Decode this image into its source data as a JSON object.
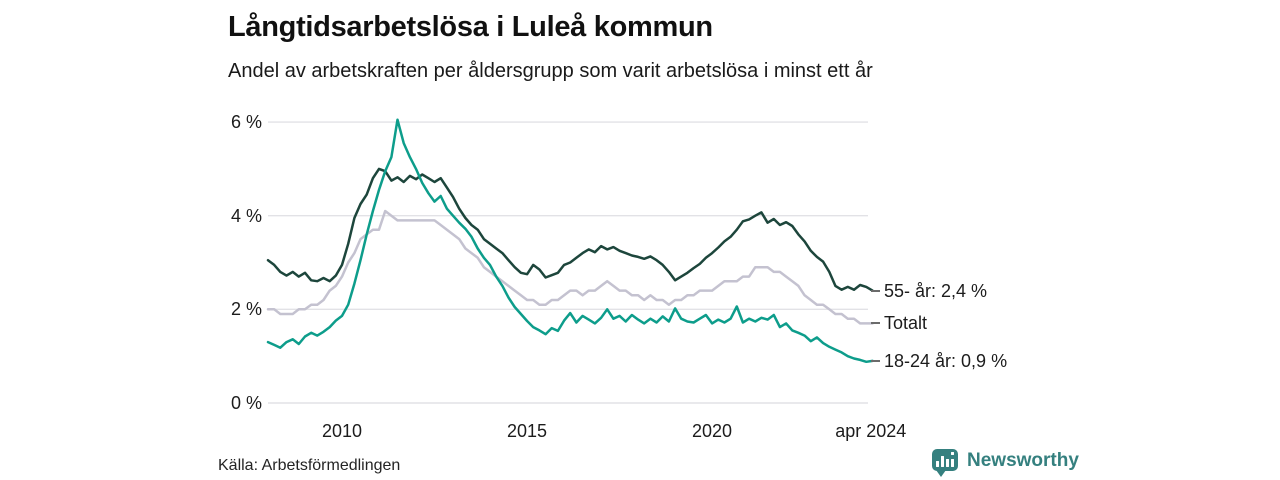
{
  "header": {
    "title": "Långtidsarbetslösa i Luleå kommun",
    "subtitle": "Andel av arbetskraften per åldersgrupp som varit arbetslösa i minst ett år"
  },
  "footer": {
    "source": "Källa: Arbetsförmedlingen",
    "brand_name": "Newsworthy",
    "brand_color": "#35807f",
    "brand_icon": "speech-bubble-bar-chart-icon"
  },
  "chart_data": {
    "type": "line",
    "title": "Långtidsarbetslösa i Luleå kommun",
    "subtitle": "Andel av arbetskraften per åldersgrupp som varit arbetslösa i minst ett år",
    "grid": true,
    "gridline_color": "#e2e2e6",
    "tick_color": "#1c1c1c",
    "legend_position": "right-end-labels",
    "x_unit": "year",
    "x_start": 2008.0,
    "x_step": 0.1667,
    "xlim": [
      2008.0,
      2024.33
    ],
    "ylim": [
      0,
      6.3
    ],
    "y_ticks": [
      {
        "label": "0 %",
        "value": 0
      },
      {
        "label": "2 %",
        "value": 2
      },
      {
        "label": "4 %",
        "value": 4
      },
      {
        "label": "6 %",
        "value": 6
      }
    ],
    "x_ticks": [
      {
        "label": "2010",
        "year": 2010
      },
      {
        "label": "2015",
        "year": 2015
      },
      {
        "label": "2020",
        "year": 2020
      },
      {
        "label": "apr 2024",
        "year": 2024.29
      }
    ],
    "series": [
      {
        "name": "Totalt",
        "end_label": "Totalt",
        "end_value": 1.7,
        "color": "#c4c2d0",
        "values": [
          2.0,
          2.0,
          1.9,
          1.9,
          1.9,
          2.0,
          2.0,
          2.1,
          2.1,
          2.2,
          2.4,
          2.5,
          2.7,
          3.0,
          3.2,
          3.5,
          3.6,
          3.7,
          3.7,
          4.1,
          4.0,
          3.9,
          3.9,
          3.9,
          3.9,
          3.9,
          3.9,
          3.9,
          3.8,
          3.7,
          3.6,
          3.5,
          3.3,
          3.2,
          3.1,
          2.9,
          2.8,
          2.7,
          2.6,
          2.5,
          2.4,
          2.3,
          2.2,
          2.2,
          2.1,
          2.1,
          2.2,
          2.2,
          2.3,
          2.4,
          2.4,
          2.3,
          2.4,
          2.4,
          2.5,
          2.6,
          2.5,
          2.4,
          2.4,
          2.3,
          2.3,
          2.2,
          2.3,
          2.2,
          2.2,
          2.1,
          2.2,
          2.2,
          2.3,
          2.3,
          2.4,
          2.4,
          2.4,
          2.5,
          2.6,
          2.6,
          2.6,
          2.7,
          2.7,
          2.9,
          2.9,
          2.9,
          2.8,
          2.8,
          2.7,
          2.6,
          2.5,
          2.3,
          2.2,
          2.1,
          2.1,
          2.0,
          1.9,
          1.9,
          1.8,
          1.8,
          1.7,
          1.7,
          1.7
        ]
      },
      {
        "name": "55- år",
        "end_label": "55- år: 2,4 %",
        "end_value": 2.4,
        "color": "#1d463c",
        "values": [
          3.05,
          2.95,
          2.8,
          2.72,
          2.8,
          2.7,
          2.78,
          2.62,
          2.6,
          2.67,
          2.6,
          2.72,
          2.95,
          3.4,
          3.95,
          4.25,
          4.45,
          4.8,
          5.0,
          4.95,
          4.75,
          4.82,
          4.72,
          4.85,
          4.78,
          4.88,
          4.8,
          4.72,
          4.8,
          4.6,
          4.4,
          4.15,
          3.95,
          3.8,
          3.7,
          3.5,
          3.4,
          3.3,
          3.2,
          3.05,
          2.9,
          2.78,
          2.75,
          2.95,
          2.85,
          2.68,
          2.73,
          2.78,
          2.95,
          3.0,
          3.1,
          3.2,
          3.28,
          3.22,
          3.35,
          3.28,
          3.33,
          3.25,
          3.2,
          3.15,
          3.12,
          3.08,
          3.13,
          3.05,
          2.95,
          2.8,
          2.62,
          2.7,
          2.78,
          2.88,
          2.97,
          3.1,
          3.2,
          3.32,
          3.45,
          3.55,
          3.7,
          3.88,
          3.92,
          4.0,
          4.07,
          3.85,
          3.93,
          3.8,
          3.86,
          3.78,
          3.6,
          3.45,
          3.25,
          3.12,
          3.02,
          2.8,
          2.5,
          2.42,
          2.48,
          2.42,
          2.52,
          2.48,
          2.4
        ]
      },
      {
        "name": "18-24 år",
        "end_label": "18-24 år: 0,9 %",
        "end_value": 0.9,
        "color": "#0d9d8b",
        "values": [
          1.3,
          1.24,
          1.18,
          1.3,
          1.36,
          1.26,
          1.42,
          1.5,
          1.44,
          1.52,
          1.62,
          1.76,
          1.86,
          2.1,
          2.55,
          3.05,
          3.6,
          4.1,
          4.55,
          4.95,
          5.25,
          6.05,
          5.55,
          5.25,
          5.0,
          4.7,
          4.48,
          4.3,
          4.42,
          4.15,
          4.0,
          3.85,
          3.72,
          3.55,
          3.3,
          3.1,
          2.95,
          2.7,
          2.5,
          2.25,
          2.05,
          1.9,
          1.75,
          1.62,
          1.55,
          1.47,
          1.6,
          1.54,
          1.76,
          1.92,
          1.72,
          1.86,
          1.78,
          1.7,
          1.82,
          2.0,
          1.8,
          1.86,
          1.74,
          1.88,
          1.78,
          1.7,
          1.8,
          1.72,
          1.85,
          1.74,
          2.02,
          1.8,
          1.74,
          1.72,
          1.8,
          1.88,
          1.7,
          1.78,
          1.72,
          1.8,
          2.06,
          1.72,
          1.8,
          1.74,
          1.82,
          1.78,
          1.88,
          1.62,
          1.7,
          1.55,
          1.5,
          1.44,
          1.32,
          1.4,
          1.28,
          1.2,
          1.14,
          1.08,
          1.0,
          0.95,
          0.92,
          0.88,
          0.9
        ]
      }
    ]
  }
}
